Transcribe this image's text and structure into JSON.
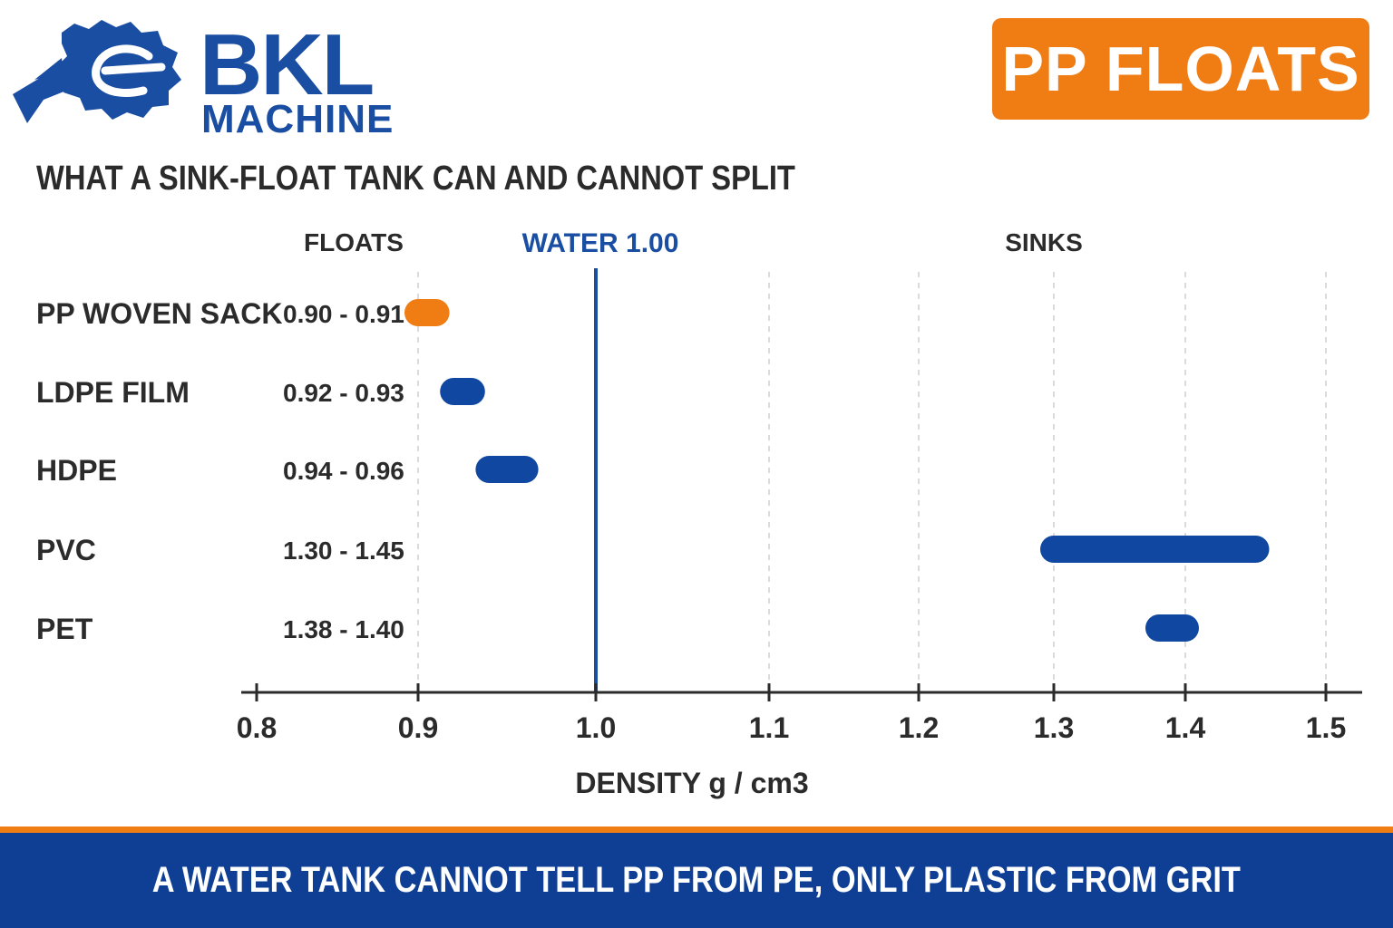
{
  "brand": {
    "name": "BKL",
    "subname": "MACHINE",
    "icon": "gear-logo-icon",
    "color": "#1a4ea3"
  },
  "badge": {
    "label": "PP FLOATS",
    "color": "#f07c14"
  },
  "headline": "WHAT A SINK-FLOAT TANK CAN AND CANNOT SPLIT",
  "chart_data": {
    "type": "range-bar",
    "orientation": "horizontal",
    "region_labels": {
      "left": "FLOATS",
      "right": "SINKS"
    },
    "reference_line": {
      "label": "WATER  1.00",
      "value": 1.0,
      "color": "#1a4ea3"
    },
    "xlabel": "DENSITY  g / cm3",
    "xlim": [
      0.8,
      1.5
    ],
    "xticks": [
      "0.8",
      "0.9",
      "1.0",
      "1.1",
      "1.2",
      "1.3",
      "1.4",
      "1.5"
    ],
    "gridlines": "dashed-vertical",
    "categories": [
      "PP  WOVEN SACK",
      "LDPE FILM",
      "HDPE",
      "PVC",
      "PET"
    ],
    "range_labels": [
      "0.90 - 0.91",
      "0.92 - 0.93",
      "0.94 - 0.96",
      "1.30 - 1.45",
      "1.38 - 1.40"
    ],
    "ranges": [
      [
        0.9,
        0.91
      ],
      [
        0.92,
        0.93
      ],
      [
        0.94,
        0.96
      ],
      [
        1.3,
        1.45
      ],
      [
        1.38,
        1.4
      ]
    ],
    "colors": [
      "#f07c14",
      "#0f47a1",
      "#0f47a1",
      "#0f47a1",
      "#0f47a1"
    ]
  },
  "footer": {
    "text": "A WATER TANK CANNOT TELL PP FROM PE, ONLY PLASTIC FROM GRIT",
    "accent_color": "#f07c14",
    "background": "#0f3f94"
  }
}
